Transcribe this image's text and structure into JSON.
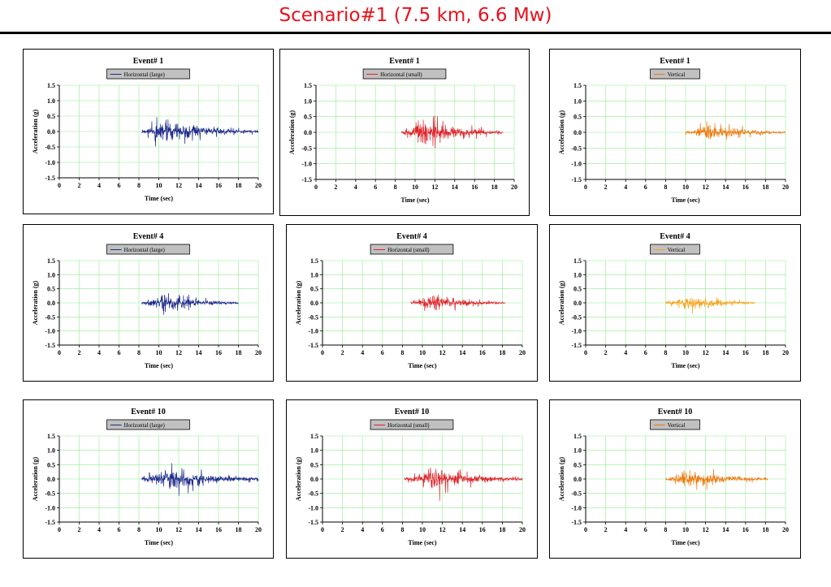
{
  "title": "Scenario#1 (7.5 km, 6.6 Mw)",
  "colors": {
    "title": "#e8121c",
    "grid": "#90ee90",
    "legend_bg": "#c0c0c0"
  },
  "chart_data": [
    {
      "type": "line",
      "title": "Event# 1",
      "legend": "Horizontal (large)",
      "color": "#1f2a8c",
      "xlabel": "Time (sec)",
      "ylabel": "Acceleration (g)",
      "xlim": [
        0,
        20
      ],
      "ylim": [
        -1.5,
        1.5
      ],
      "xticks": [
        0,
        2,
        4,
        6,
        8,
        10,
        12,
        14,
        16,
        18,
        20
      ],
      "yticks": [
        1.5,
        1.0,
        0.5,
        0.0,
        -0.5,
        -1.0,
        -1.5
      ],
      "ytick_labels": [
        "1.5",
        "1.0",
        "0.5",
        "0.0",
        "-0.5",
        "-1.0",
        "-1.5"
      ],
      "grid": true,
      "legend_position": "top-center",
      "signal": {
        "start": 8.3,
        "end": 20.0,
        "peak_time": 10.5,
        "peak": 0.9,
        "seed": 11
      }
    },
    {
      "type": "line",
      "title": "Event# 1",
      "legend": "Horizontal (small)",
      "color": "#e0242c",
      "xlabel": "Time (sec)",
      "ylabel": "Acceleration (g)",
      "xlim": [
        0,
        20
      ],
      "ylim": [
        -1.5,
        1.5
      ],
      "xticks": [
        0,
        2,
        4,
        6,
        8,
        10,
        12,
        14,
        16,
        18,
        20
      ],
      "yticks": [
        1.5,
        1.0,
        0.5,
        0.0,
        -0.5,
        -1.0,
        -1.5
      ],
      "ytick_labels": [
        "1.5",
        "1.0",
        "0.5",
        "0.0",
        "-0.5",
        "-1.0",
        "-1.5"
      ],
      "grid": true,
      "legend_position": "top-center",
      "signal": {
        "start": 8.6,
        "end": 18.9,
        "peak_time": 11.0,
        "peak": 0.9,
        "seed": 23
      }
    },
    {
      "type": "line",
      "title": "Event# 1",
      "legend": "Vertical",
      "color": "#f07a10",
      "xlabel": "Time (sec)",
      "ylabel": "Acceleration (g)",
      "xlim": [
        0,
        20
      ],
      "ylim": [
        -1.5,
        1.5
      ],
      "xticks": [
        0,
        2,
        4,
        6,
        8,
        10,
        12,
        14,
        16,
        18,
        20
      ],
      "yticks": [
        1.5,
        1.0,
        0.5,
        0.0,
        -0.5,
        -1.0,
        -1.5
      ],
      "ytick_labels": [
        "1.5",
        "1.0",
        "0.5",
        "0.0",
        "-0.5",
        "-1.0",
        "-1.5"
      ],
      "grid": true,
      "legend_position": "top-center",
      "signal": {
        "start": 10.0,
        "end": 20.0,
        "peak_time": 12.5,
        "peak": 0.65,
        "seed": 37
      }
    },
    {
      "type": "line",
      "title": "Event# 4",
      "legend": "Horizontal (large)",
      "color": "#1f2a8c",
      "xlabel": "Time (sec)",
      "ylabel": "Acceleration (g)",
      "xlim": [
        0,
        20
      ],
      "ylim": [
        -1.5,
        1.5
      ],
      "xticks": [
        0,
        2,
        4,
        6,
        8,
        10,
        12,
        14,
        16,
        18,
        20
      ],
      "yticks": [
        1.5,
        1.0,
        0.5,
        0.0,
        -0.5,
        -1.0,
        -1.5
      ],
      "ytick_labels": [
        "1.5",
        "1.0",
        "0.5",
        "0.0",
        "-0.5",
        "-1.0",
        "-1.5"
      ],
      "grid": true,
      "legend_position": "top-center",
      "signal": {
        "start": 8.3,
        "end": 18.0,
        "peak_time": 10.5,
        "peak": 0.75,
        "seed": 41
      }
    },
    {
      "type": "line",
      "title": "Event# 4",
      "legend": "Horizontal (small)",
      "color": "#e0242c",
      "xlabel": "Time (sec)",
      "ylabel": "Acceleration (g)",
      "xlim": [
        0,
        20
      ],
      "ylim": [
        -1.5,
        1.5
      ],
      "xticks": [
        0,
        2,
        4,
        6,
        8,
        10,
        12,
        14,
        16,
        18,
        20
      ],
      "yticks": [
        1.5,
        1.0,
        0.5,
        0.0,
        -0.5,
        -1.0,
        -1.5
      ],
      "ytick_labels": [
        "1.5",
        "1.0",
        "0.5",
        "0.0",
        "-0.5",
        "-1.0",
        "-1.5"
      ],
      "grid": true,
      "legend_position": "top-center",
      "signal": {
        "start": 8.8,
        "end": 18.3,
        "peak_time": 11.0,
        "peak": 0.7,
        "seed": 53
      }
    },
    {
      "type": "line",
      "title": "Event# 4",
      "legend": "Vertical",
      "color": "#f5a623",
      "xlabel": "Time (sec)",
      "ylabel": "Acceleration (g)",
      "xlim": [
        0,
        20
      ],
      "ylim": [
        -1.5,
        1.5
      ],
      "xticks": [
        0,
        2,
        4,
        6,
        8,
        10,
        12,
        14,
        16,
        18,
        20
      ],
      "yticks": [
        1.5,
        1.0,
        0.5,
        0.0,
        -0.5,
        -1.0,
        -1.5
      ],
      "ytick_labels": [
        "1.5",
        "1.0",
        "0.5",
        "0.0",
        "-0.5",
        "-1.0",
        "-1.5"
      ],
      "grid": true,
      "legend_position": "top-center",
      "signal": {
        "start": 8.0,
        "end": 17.0,
        "peak_time": 10.0,
        "peak": 0.6,
        "seed": 67
      }
    },
    {
      "type": "line",
      "title": "Event# 10",
      "legend": "Horizontal (large)",
      "color": "#1f2a8c",
      "xlabel": "Time (sec)",
      "ylabel": "Acceleration (g)",
      "xlim": [
        0,
        20
      ],
      "ylim": [
        -1.5,
        1.5
      ],
      "xticks": [
        0,
        2,
        4,
        6,
        8,
        10,
        12,
        14,
        16,
        18,
        20
      ],
      "yticks": [
        1.5,
        1.0,
        0.5,
        0.0,
        -0.5,
        -1.0,
        -1.5
      ],
      "ytick_labels": [
        "1.5",
        "1.0",
        "0.5",
        "0.0",
        "-0.5",
        "-1.0",
        "-1.5"
      ],
      "grid": true,
      "legend_position": "top-center",
      "signal": {
        "start": 8.3,
        "end": 20.0,
        "peak_time": 11.0,
        "peak": 1.0,
        "seed": 71
      }
    },
    {
      "type": "line",
      "title": "Event# 10",
      "legend": "Horizontal (small)",
      "color": "#e0242c",
      "xlabel": "Time (sec)",
      "ylabel": "Acceleration (g)",
      "xlim": [
        0,
        20
      ],
      "ylim": [
        -1.5,
        1.5
      ],
      "xticks": [
        0,
        2,
        4,
        6,
        8,
        10,
        12,
        14,
        16,
        18,
        20
      ],
      "yticks": [
        1.5,
        1.0,
        0.5,
        0.0,
        -0.5,
        -1.0,
        -1.5
      ],
      "ytick_labels": [
        "1.5",
        "1.0",
        "0.5",
        "0.0",
        "-0.5",
        "-1.0",
        "-1.5"
      ],
      "grid": true,
      "legend_position": "top-center",
      "signal": {
        "start": 8.2,
        "end": 20.0,
        "peak_time": 11.5,
        "peak": 0.85,
        "seed": 83
      }
    },
    {
      "type": "line",
      "title": "Event# 10",
      "legend": "Vertical",
      "color": "#f07a10",
      "xlabel": "Time (sec)",
      "ylabel": "Acceleration (g)",
      "xlim": [
        0,
        20
      ],
      "ylim": [
        -1.5,
        1.5
      ],
      "xticks": [
        0,
        2,
        4,
        6,
        8,
        10,
        12,
        14,
        16,
        18,
        20
      ],
      "yticks": [
        1.5,
        1.0,
        0.5,
        0.0,
        -0.5,
        -1.0,
        -1.5
      ],
      "ytick_labels": [
        "1.5",
        "1.0",
        "0.5",
        "0.0",
        "-0.5",
        "-1.0",
        "-1.5"
      ],
      "grid": true,
      "legend_position": "top-center",
      "signal": {
        "start": 8.0,
        "end": 18.2,
        "peak_time": 10.5,
        "peak": 0.75,
        "seed": 97
      }
    }
  ]
}
